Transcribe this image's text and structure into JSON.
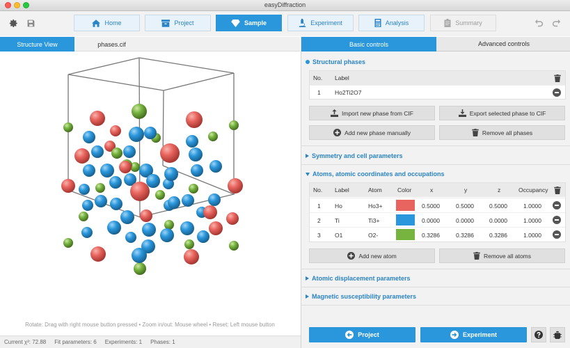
{
  "window": {
    "title": "easyDiffraction"
  },
  "toolbar": {
    "nav": [
      {
        "label": "Home",
        "icon": "home-icon",
        "state": "normal"
      },
      {
        "label": "Project",
        "icon": "archive-icon",
        "state": "normal"
      },
      {
        "label": "Sample",
        "icon": "gem-icon",
        "state": "active"
      },
      {
        "label": "Experiment",
        "icon": "microscope-icon",
        "state": "normal"
      },
      {
        "label": "Analysis",
        "icon": "calculator-icon",
        "state": "normal"
      },
      {
        "label": "Summary",
        "icon": "clipboard-icon",
        "state": "disabled"
      }
    ]
  },
  "left_tabs": [
    "Structure View",
    "phases.cif"
  ],
  "view_hint": "Rotate: Drag with right mouse button pressed  •  Zoom in/out: Mouse wheel  •  Reset: Left mouse button",
  "status": {
    "chi2": "Current χ²: 72.88",
    "fit_params": "Fit parameters: 6",
    "experiments": "Experiments: 1",
    "phases": "Phases: 1"
  },
  "right_tabs": {
    "basic": "Basic controls",
    "advanced": "Advanced controls"
  },
  "structural_phases": {
    "title": "Structural phases",
    "headers": {
      "no": "No.",
      "label": "Label"
    },
    "rows": [
      {
        "no": "1",
        "label": "Ho2Ti2O7"
      }
    ],
    "buttons": {
      "import": "Import new phase from CIF",
      "export": "Export selected phase to CIF",
      "add": "Add new phase manually",
      "remove": "Remove all phases"
    }
  },
  "symmetry": {
    "title": "Symmetry and cell parameters"
  },
  "atoms": {
    "title": "Atoms, atomic coordinates and occupations",
    "headers": {
      "no": "No.",
      "label": "Label",
      "atom": "Atom",
      "color": "Color",
      "x": "x",
      "y": "y",
      "z": "z",
      "occ": "Occupancy"
    },
    "rows": [
      {
        "no": "1",
        "label": "Ho",
        "atom": "Ho3+",
        "color": "#e8645e",
        "x": "0.5000",
        "y": "0.5000",
        "z": "0.5000",
        "occ": "1.0000"
      },
      {
        "no": "2",
        "label": "Ti",
        "atom": "Ti3+",
        "color": "#2a97dc",
        "x": "0.0000",
        "y": "0.0000",
        "z": "0.0000",
        "occ": "1.0000"
      },
      {
        "no": "3",
        "label": "O1",
        "atom": "O2-",
        "color": "#76b33f",
        "x": "0.3286",
        "y": "0.3286",
        "z": "0.3286",
        "occ": "1.0000"
      }
    ],
    "buttons": {
      "add": "Add new atom",
      "remove": "Remove all atoms"
    }
  },
  "adp": {
    "title": "Atomic displacement parameters"
  },
  "msp": {
    "title": "Magnetic susceptibility parameters"
  },
  "bottom": {
    "project": "Project",
    "experiment": "Experiment"
  },
  "colors": {
    "accent": "#2a97dc",
    "ho": "#e8645e",
    "ti": "#2a97dc",
    "o": "#76b33f"
  }
}
